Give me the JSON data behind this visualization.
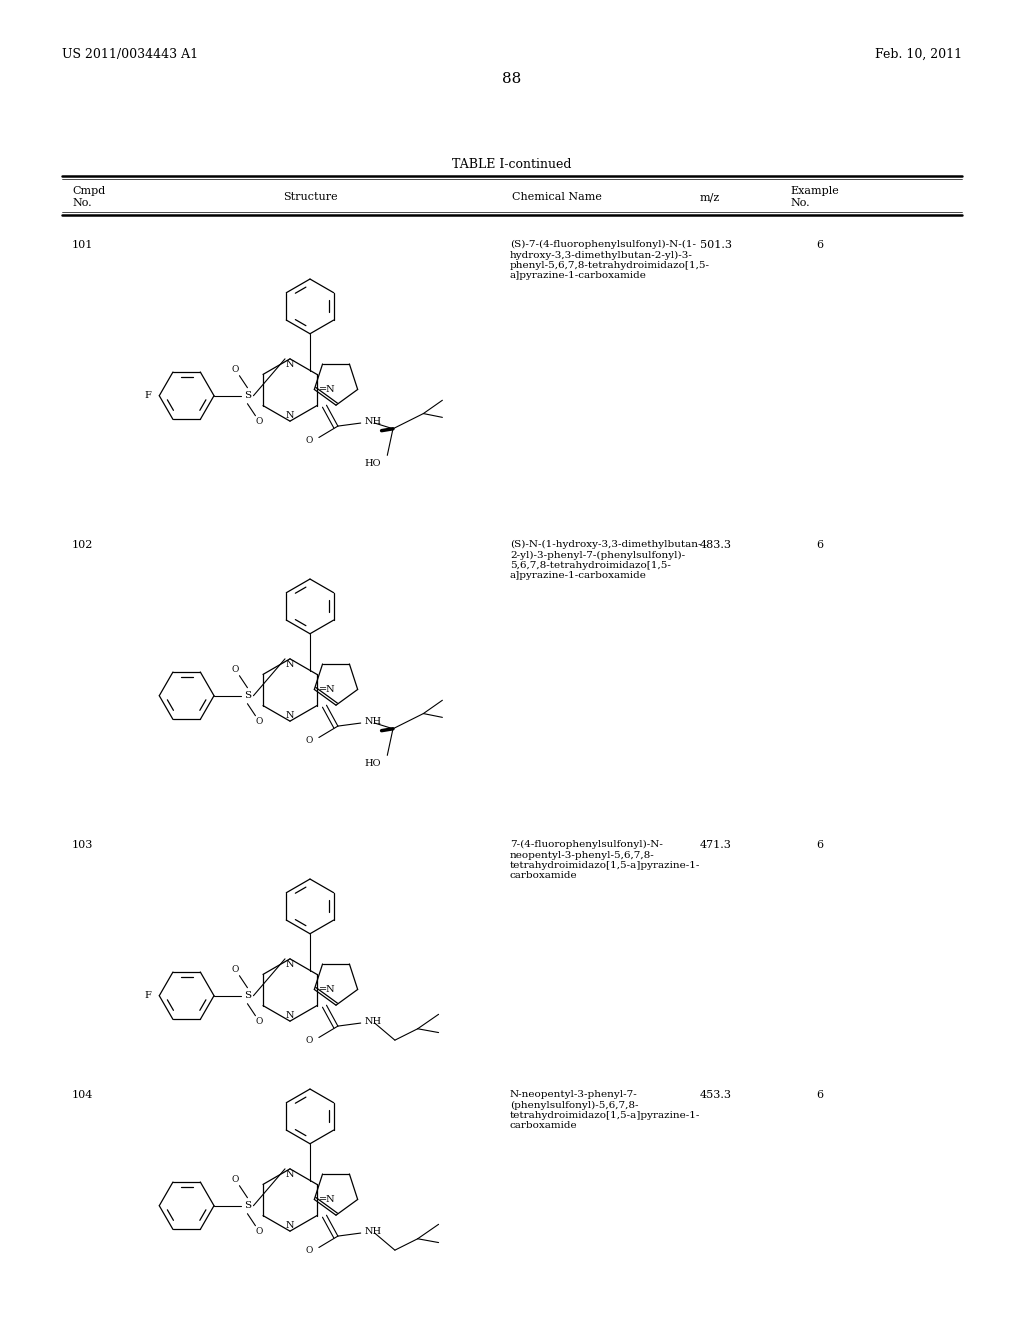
{
  "page_header_left": "US 2011/0034443 A1",
  "page_header_right": "Feb. 10, 2011",
  "page_number": "88",
  "table_title": "TABLE I-continued",
  "background_color": "#ffffff",
  "rows": [
    {
      "cmpd": "101",
      "chemical_name": "(S)-7-(4-fluorophenylsulfonyl)-N-(1-\nhydroxy-3,3-dimethylbutan-2-yl)-3-\nphenyl-5,6,7,8-tetrahydroimidazo[1,5-\na]pyrazine-1-carboxamide",
      "mz": "501.3",
      "example": "6",
      "has_F": true
    },
    {
      "cmpd": "102",
      "chemical_name": "(S)-N-(1-hydroxy-3,3-dimethylbutan-\n2-yl)-3-phenyl-7-(phenylsulfonyl)-\n5,6,7,8-tetrahydroimidazo[1,5-\na]pyrazine-1-carboxamide",
      "mz": "483.3",
      "example": "6",
      "has_F": false
    },
    {
      "cmpd": "103",
      "chemical_name": "7-(4-fluorophenylsulfonyl)-N-\nneopentyl-3-phenyl-5,6,7,8-\ntetrahydroimidazo[1,5-a]pyrazine-1-\ncarboxamide",
      "mz": "471.3",
      "example": "6",
      "has_F": true
    },
    {
      "cmpd": "104",
      "chemical_name": "N-neopentyl-3-phenyl-7-\n(phenylsulfonyl)-5,6,7,8-\ntetrahydroimidazo[1,5-a]pyrazine-1-\ncarboxamide",
      "mz": "453.3",
      "example": "6",
      "has_F": false
    }
  ]
}
